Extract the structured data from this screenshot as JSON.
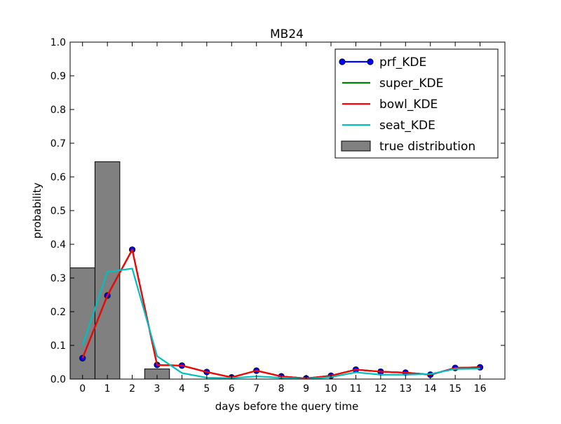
{
  "chart_data": {
    "type": "line",
    "title": "MB24",
    "xlabel": "days before the query time",
    "ylabel": "probability",
    "xlim": [
      -0.5,
      17
    ],
    "ylim": [
      0,
      1
    ],
    "x_ticks": [
      0,
      1,
      2,
      3,
      4,
      5,
      6,
      7,
      8,
      9,
      10,
      11,
      12,
      13,
      14,
      15,
      16
    ],
    "y_ticks": [
      "0.0",
      "0.1",
      "0.2",
      "0.3",
      "0.4",
      "0.5",
      "0.6",
      "0.7",
      "0.8",
      "0.9",
      "1.0"
    ],
    "grid": false,
    "legend_position": "top-right",
    "x": [
      0,
      1,
      2,
      3,
      4,
      5,
      6,
      7,
      8,
      9,
      10,
      11,
      12,
      13,
      14,
      15,
      16
    ],
    "series": [
      {
        "name": "prf_KDE",
        "color": "#0000ff",
        "marker": "circle",
        "values": [
          0.062,
          0.248,
          0.384,
          0.042,
          0.04,
          0.021,
          0.005,
          0.025,
          0.008,
          0.002,
          0.01,
          0.028,
          0.022,
          0.019,
          0.013,
          0.033,
          0.035
        ]
      },
      {
        "name": "super_KDE",
        "color": "#008000",
        "marker": "none",
        "values": [
          0.062,
          0.248,
          0.384,
          0.042,
          0.04,
          0.021,
          0.005,
          0.025,
          0.008,
          0.002,
          0.01,
          0.028,
          0.022,
          0.019,
          0.013,
          0.033,
          0.035
        ]
      },
      {
        "name": "bowl_KDE",
        "color": "#ff0000",
        "marker": "none",
        "values": [
          0.062,
          0.248,
          0.384,
          0.042,
          0.04,
          0.021,
          0.005,
          0.025,
          0.008,
          0.002,
          0.01,
          0.028,
          0.022,
          0.019,
          0.013,
          0.033,
          0.035
        ]
      },
      {
        "name": "seat_KDE",
        "color": "#00bfbf",
        "marker": "none",
        "values": [
          0.1,
          0.318,
          0.328,
          0.068,
          0.018,
          0.004,
          0.003,
          0.008,
          0.004,
          0.0,
          0.006,
          0.02,
          0.013,
          0.013,
          0.015,
          0.03,
          0.031
        ]
      }
    ],
    "histogram": {
      "name": "true distribution",
      "color": "#808080",
      "bins": [
        {
          "start": -0.5,
          "end": 0.5,
          "value": 0.33
        },
        {
          "start": 0.5,
          "end": 1.5,
          "value": 0.645
        },
        {
          "start": 2.5,
          "end": 3.5,
          "value": 0.03
        }
      ]
    }
  }
}
